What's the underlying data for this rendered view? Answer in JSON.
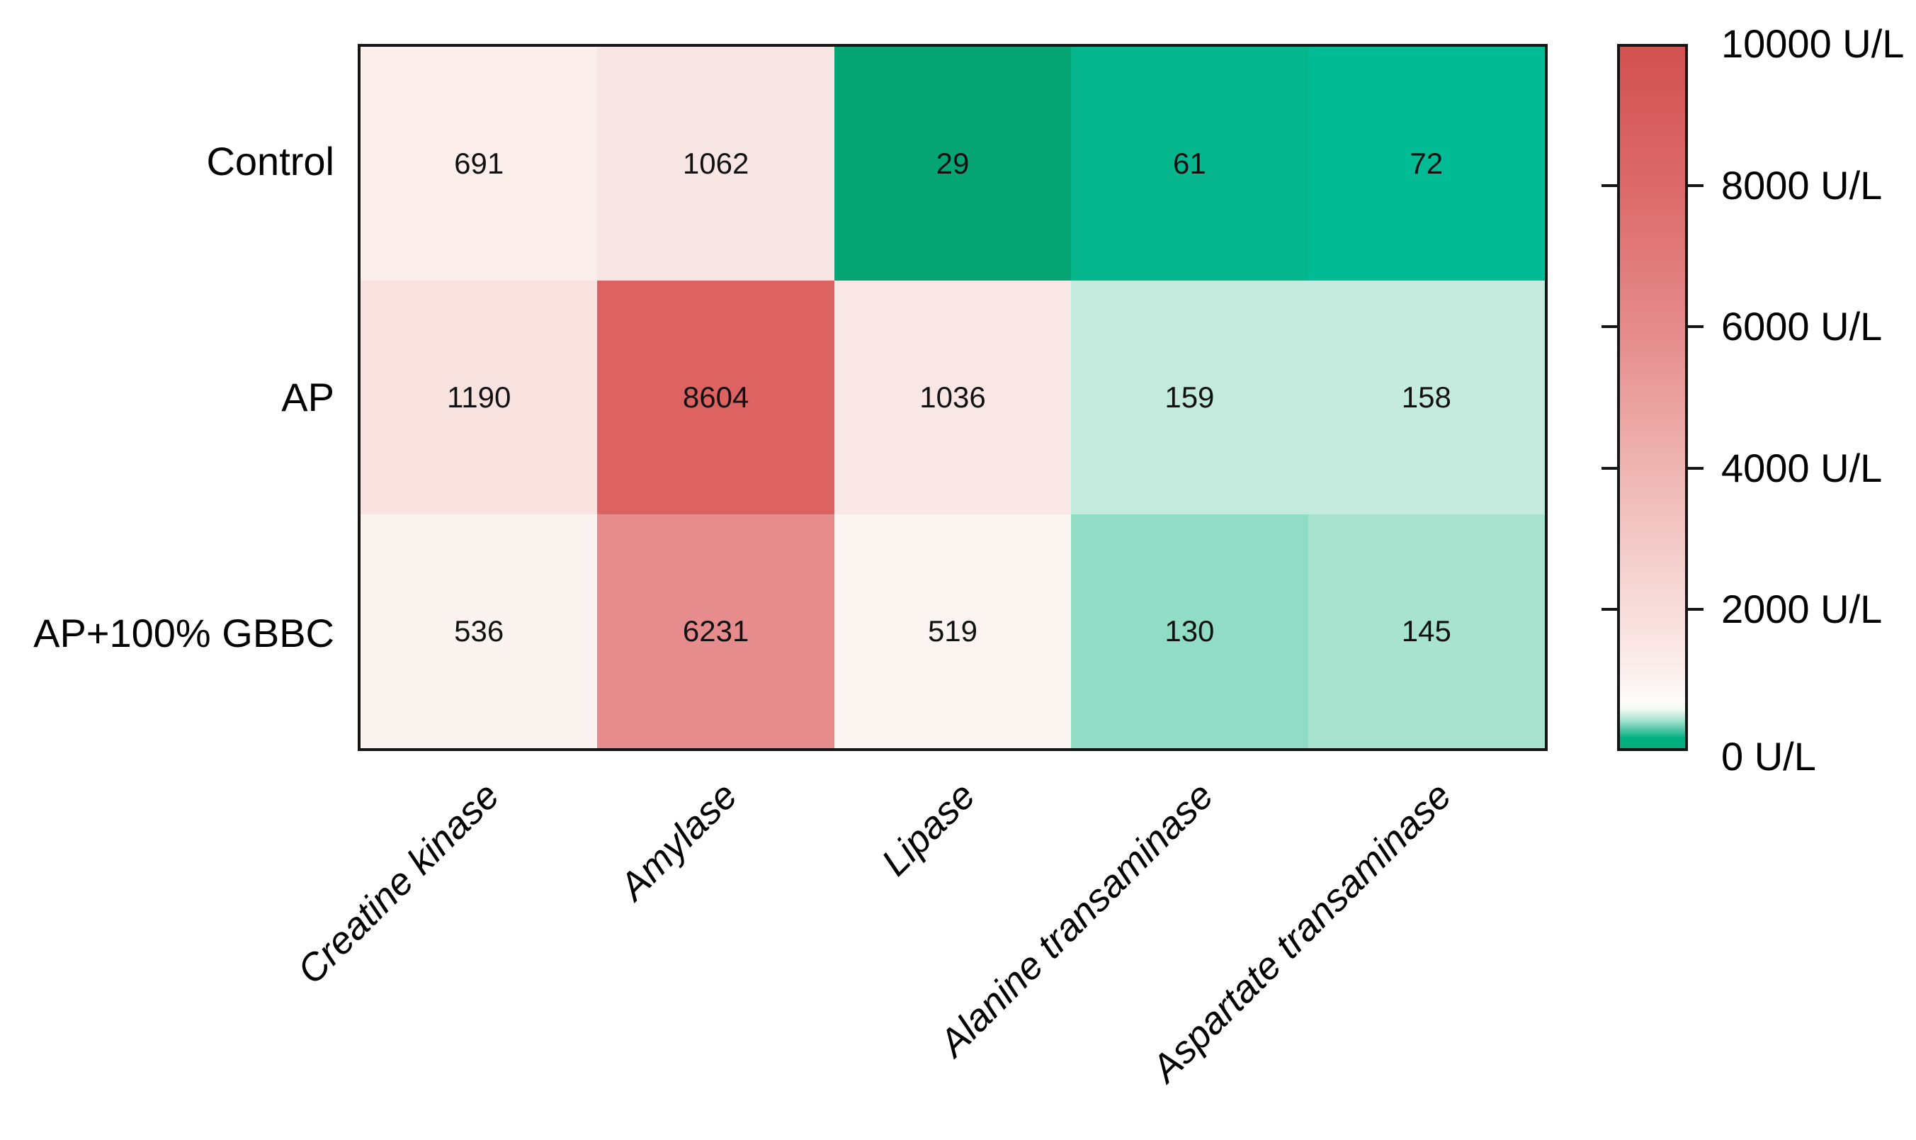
{
  "figure": {
    "kind": "heatmap-figure",
    "background": "#ffffff",
    "border_color": "#151515",
    "text_color": "#000000"
  },
  "chart_data": {
    "type": "heatmap",
    "rows": [
      "Control",
      "AP",
      "AP+100% GBBC"
    ],
    "columns": [
      "Creatine kinase",
      "Amylase",
      "Lipase",
      "Alanine transaminase",
      "Aspartate transaminase"
    ],
    "values": [
      [
        691,
        1062,
        29,
        61,
        72
      ],
      [
        1190,
        8604,
        1036,
        159,
        158
      ],
      [
        536,
        6231,
        519,
        130,
        145
      ]
    ],
    "cell_colors": [
      [
        "#FBEEEB",
        "#F8E6E4",
        "#04A572",
        "#06B78D",
        "#01BB95"
      ],
      [
        "#F8E3E1",
        "#DD6363",
        "#F9E7E5",
        "#C3EADC",
        "#C4EBDD"
      ],
      [
        "#FBF3F0",
        "#E68C8C",
        "#FBF4F1",
        "#90DCC4",
        "#A8E3D0"
      ]
    ],
    "unit": "U/L",
    "value_min": 0,
    "value_max": 10000,
    "grid": false,
    "legend_position": "right-colorbar",
    "colorbar": {
      "labels": [
        {
          "value": 10000,
          "label": "10000 U/L"
        },
        {
          "value": 8000,
          "label": "8000 U/L"
        },
        {
          "value": 6000,
          "label": "6000 U/L"
        },
        {
          "value": 4000,
          "label": "4000 U/L"
        },
        {
          "value": 2000,
          "label": "2000 U/L"
        },
        {
          "value": 0,
          "label": "0 U/L"
        }
      ],
      "tick_values": [
        8000,
        6000,
        4000,
        2000
      ],
      "gradient_stops": [
        {
          "pos": 0,
          "color": "#D25151"
        },
        {
          "pos": 20,
          "color": "#DC6A6A"
        },
        {
          "pos": 40,
          "color": "#E58A8A"
        },
        {
          "pos": 60,
          "color": "#EFB5B2"
        },
        {
          "pos": 80,
          "color": "#F7DCDA"
        },
        {
          "pos": 88,
          "color": "#FBECEA"
        },
        {
          "pos": 93.5,
          "color": "#FEFCFB"
        },
        {
          "pos": 94.5,
          "color": "#EFF9F4"
        },
        {
          "pos": 96,
          "color": "#A9E3D0"
        },
        {
          "pos": 98.5,
          "color": "#06B181"
        },
        {
          "pos": 100,
          "color": "#00AC7B"
        }
      ]
    }
  }
}
